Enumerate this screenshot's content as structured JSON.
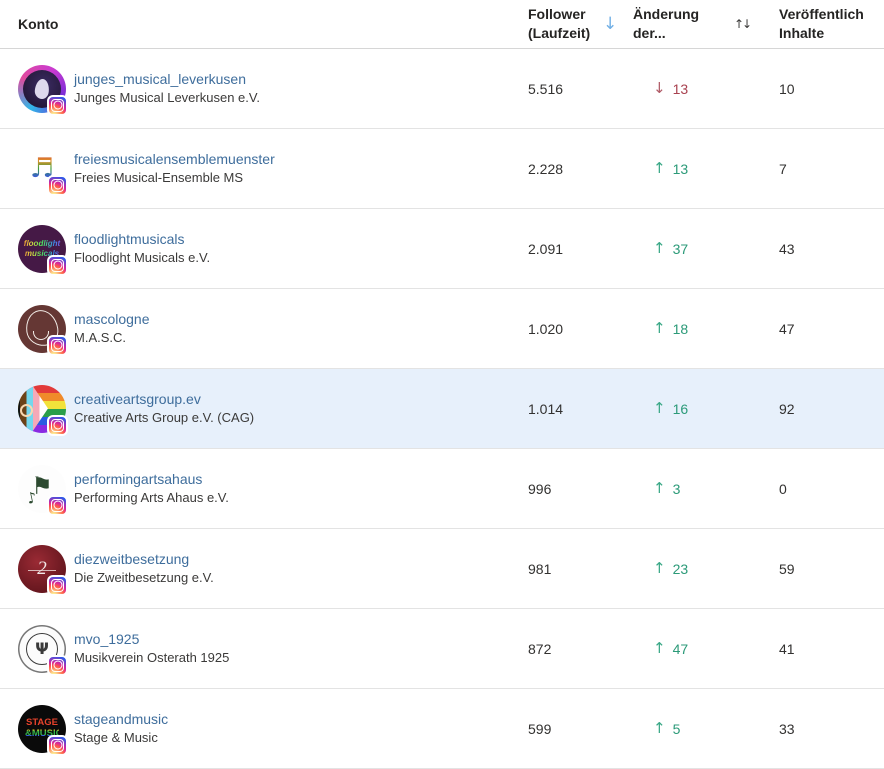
{
  "header": {
    "columns": [
      {
        "label": "Konto",
        "sort": ""
      },
      {
        "label": "Follower (Laufzeit)",
        "sort": "desc"
      },
      {
        "label": "Änderung der...",
        "sort": "unsorted"
      },
      {
        "label": "Veröffentlich Inhalte",
        "sort": ""
      }
    ]
  },
  "icons": {
    "sort_desc": "↓",
    "sort_unsorted": "↑↓",
    "increase": "↑",
    "decrease": "↓",
    "network_badge": "instagram-icon"
  },
  "colors": {
    "username_link": "#3e6d9c",
    "text": "#323130",
    "increase": "#2b9a78",
    "decrease": "#a8414f",
    "sort_active_arrow": "#71afe5",
    "selected_row_background": "#e7f0fb"
  },
  "rows": [
    {
      "username": "junges_musical_leverkusen",
      "name": "Junges Musical Leverkusen e.V.",
      "followers": "5.516",
      "change": "13",
      "change_dir": "down",
      "posts": "10",
      "highlighted": false,
      "avatar_text": ""
    },
    {
      "username": "freiesmusicalensemblemuenster",
      "name": "Freies Musical-Ensemble MS",
      "followers": "2.228",
      "change": "13",
      "change_dir": "up",
      "posts": "7",
      "highlighted": false,
      "avatar_text": ""
    },
    {
      "username": "floodlightmusicals",
      "name": "Floodlight Musicals e.V.",
      "followers": "2.091",
      "change": "37",
      "change_dir": "up",
      "posts": "43",
      "highlighted": false,
      "avatar_text": "floodlight musicals"
    },
    {
      "username": "mascologne",
      "name": "M.A.S.C.",
      "followers": "1.020",
      "change": "18",
      "change_dir": "up",
      "posts": "47",
      "highlighted": false,
      "avatar_text": ""
    },
    {
      "username": "creativeartsgroup.ev",
      "name": "Creative Arts Group e.V. (CAG)",
      "followers": "1.014",
      "change": "16",
      "change_dir": "up",
      "posts": "92",
      "highlighted": true,
      "avatar_text": ""
    },
    {
      "username": "performingartsahaus",
      "name": "Performing Arts Ahaus e.V.",
      "followers": "996",
      "change": "3",
      "change_dir": "up",
      "posts": "0",
      "highlighted": false,
      "avatar_text": ""
    },
    {
      "username": "diezweitbesetzung",
      "name": "Die Zweitbesetzung e.V.",
      "followers": "981",
      "change": "23",
      "change_dir": "up",
      "posts": "59",
      "highlighted": false,
      "avatar_text": "2"
    },
    {
      "username": "mvo_1925",
      "name": "Musikverein Osterath 1925",
      "followers": "872",
      "change": "47",
      "change_dir": "up",
      "posts": "41",
      "highlighted": false,
      "avatar_text": ""
    },
    {
      "username": "stageandmusic",
      "name": "Stage & Music",
      "followers": "599",
      "change": "5",
      "change_dir": "up",
      "posts": "33",
      "highlighted": false,
      "avatar_text": "STAGE &MUSIC"
    }
  ]
}
